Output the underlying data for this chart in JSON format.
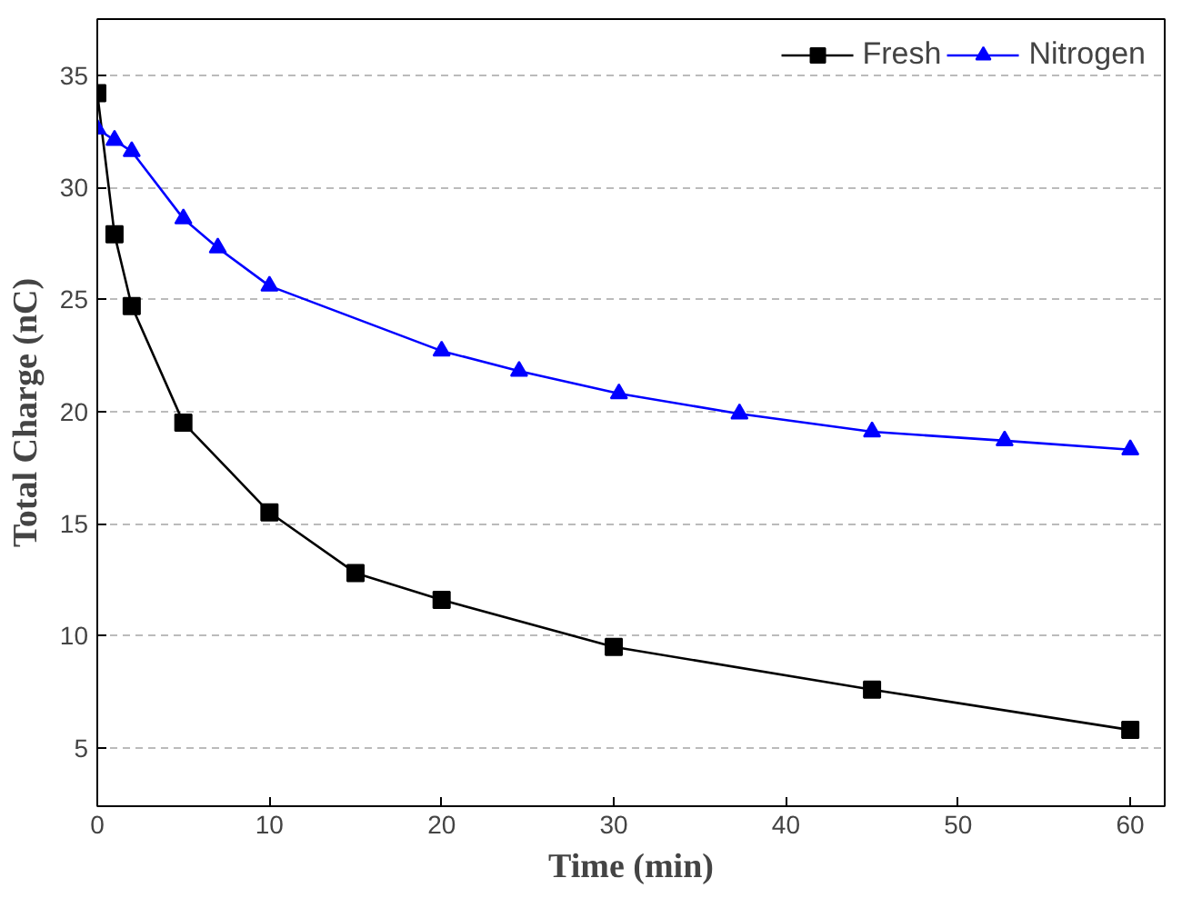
{
  "chart_data": {
    "type": "line",
    "xlabel": "Time (min)",
    "ylabel": "Total Charge (nC)",
    "xlim": [
      0,
      62
    ],
    "ylim": [
      2.4,
      37.5
    ],
    "xticks": [
      0,
      10,
      20,
      30,
      40,
      50,
      60
    ],
    "yticks": [
      5,
      10,
      15,
      20,
      25,
      30,
      35
    ],
    "grid": "y",
    "legend": "top right",
    "line_style": "solid",
    "series": [
      {
        "name": "Fresh",
        "color": "#000000",
        "marker": "square",
        "x": [
          0,
          1,
          2,
          5,
          10,
          15,
          20,
          30,
          45,
          60
        ],
        "values": [
          34.2,
          27.9,
          24.7,
          19.5,
          15.5,
          12.8,
          11.6,
          9.5,
          7.6,
          5.8
        ]
      },
      {
        "name": "Nitrogen",
        "color": "#0000ff",
        "marker": "triangle",
        "x": [
          0,
          1,
          2,
          5,
          7,
          10,
          20,
          24.5,
          30.3,
          37.3,
          45,
          52.7,
          60
        ],
        "values": [
          32.6,
          32.1,
          31.6,
          28.6,
          27.3,
          25.6,
          22.7,
          21.8,
          20.8,
          19.9,
          19.1,
          18.7,
          18.3
        ]
      }
    ]
  }
}
